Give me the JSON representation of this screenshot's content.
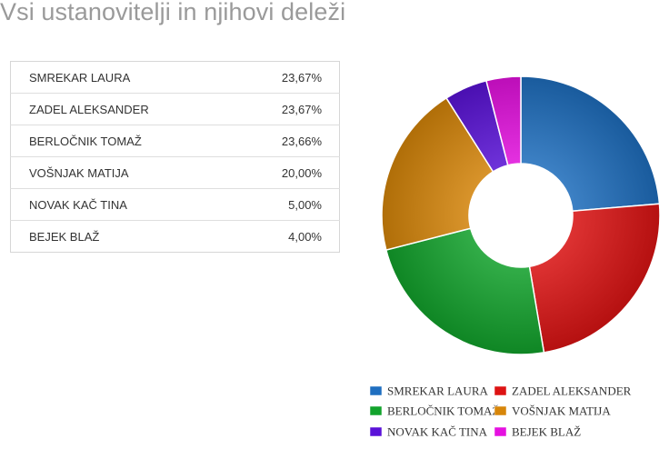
{
  "page": {
    "title": "Vsi ustanovitelji in njihovi deleži"
  },
  "table": {
    "rows": [
      {
        "name": "SMREKAR LAURA",
        "share": "23,67%"
      },
      {
        "name": "ZADEL ALEKSANDER",
        "share": "23,67%"
      },
      {
        "name": "BERLOČNIK TOMAŽ",
        "share": "23,66%"
      },
      {
        "name": "VOŠNJAK MATIJA",
        "share": "20,00%"
      },
      {
        "name": "NOVAK KAČ TINA",
        "share": "5,00%"
      },
      {
        "name": "BEJEK BLAŽ",
        "share": "4,00%"
      }
    ]
  },
  "chart_data": {
    "type": "pie",
    "donut": true,
    "categories": [
      "SMREKAR LAURA",
      "ZADEL ALEKSANDER",
      "BERLOČNIK TOMAŽ",
      "VOŠNJAK MATIJA",
      "NOVAK KAČ TINA",
      "BEJEK BLAŽ"
    ],
    "values": [
      23.67,
      23.67,
      23.66,
      20.0,
      5.0,
      4.0
    ],
    "colors": [
      "#1f6fc0",
      "#dd1313",
      "#12a32c",
      "#d7860a",
      "#5a12d8",
      "#e511e0"
    ],
    "legend_position": "bottom"
  }
}
